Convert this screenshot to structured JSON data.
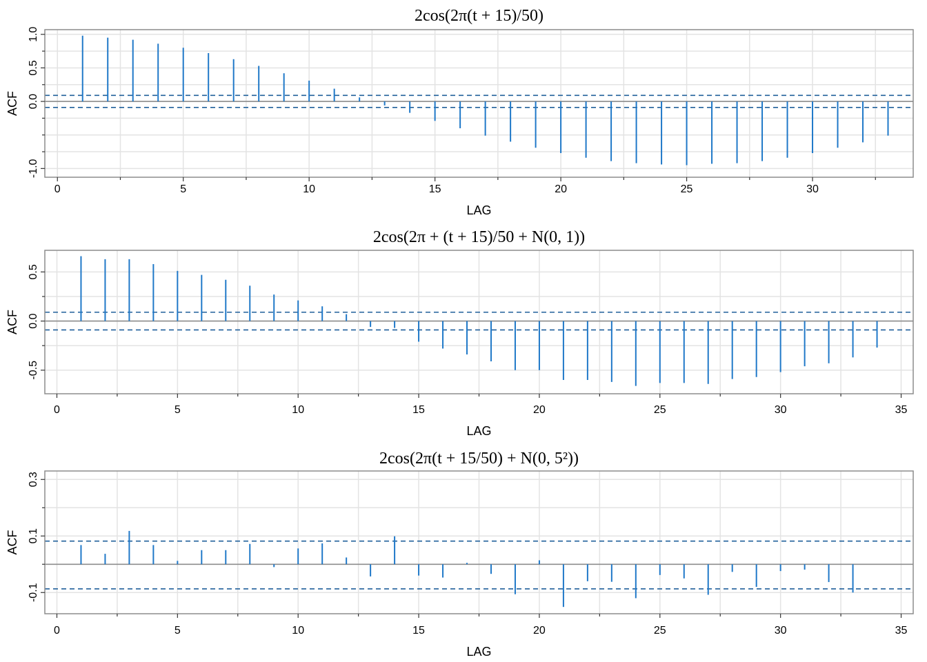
{
  "colors": {
    "spike": "#1f78c8",
    "bound": "#1f5f9a",
    "grid": "#e3e3e3",
    "frame": "#8c8c8c",
    "zero": "#8c8c8c"
  },
  "chart_data": [
    {
      "type": "bar",
      "title": "2cos(2π(t + 15)/50)",
      "xlabel": "LAG",
      "ylabel": "ACF",
      "xlim": [
        -0.5,
        34
      ],
      "ylim": [
        -1.13,
        1.07
      ],
      "xticks": [
        0,
        5,
        10,
        15,
        20,
        25,
        30
      ],
      "xtick_labels": [
        "0",
        "5",
        "10",
        "15",
        "20",
        "25",
        "30"
      ],
      "yticks": [
        1.0,
        0.5,
        0.0,
        -1.0
      ],
      "ytick_labels": [
        "1.0",
        "0.5",
        "0.0",
        "-1.0"
      ],
      "grid": true,
      "confidence_bounds": [
        0.09,
        -0.09
      ],
      "x": [
        1,
        2,
        3,
        4,
        5,
        6,
        7,
        8,
        9,
        10,
        11,
        12,
        13,
        14,
        15,
        16,
        17,
        18,
        19,
        20,
        21,
        22,
        23,
        24,
        25,
        26,
        27,
        28,
        29,
        30,
        31,
        32,
        33
      ],
      "values": [
        0.98,
        0.95,
        0.92,
        0.86,
        0.8,
        0.72,
        0.63,
        0.53,
        0.42,
        0.31,
        0.19,
        0.06,
        -0.06,
        -0.17,
        -0.29,
        -0.4,
        -0.51,
        -0.6,
        -0.69,
        -0.77,
        -0.84,
        -0.89,
        -0.92,
        -0.94,
        -0.95,
        -0.93,
        -0.92,
        -0.89,
        -0.84,
        -0.77,
        -0.69,
        -0.61,
        -0.51
      ]
    },
    {
      "type": "bar",
      "title": "2cos(2π + (t + 15)/50 + N(0, 1))",
      "xlabel": "LAG",
      "ylabel": "ACF",
      "xlim": [
        -0.5,
        35.5
      ],
      "ylim": [
        -0.74,
        0.72
      ],
      "xticks": [
        0,
        5,
        10,
        15,
        20,
        25,
        30,
        35
      ],
      "xtick_labels": [
        "0",
        "5",
        "10",
        "15",
        "20",
        "25",
        "30",
        "35"
      ],
      "yticks": [
        0.5,
        0.0,
        -0.5
      ],
      "ytick_labels": [
        "0.5",
        "0.0",
        "-0.5"
      ],
      "grid": true,
      "confidence_bounds": [
        0.09,
        -0.09
      ],
      "x": [
        1,
        2,
        3,
        4,
        5,
        6,
        7,
        8,
        9,
        10,
        11,
        12,
        13,
        14,
        15,
        16,
        17,
        18,
        19,
        20,
        21,
        22,
        23,
        24,
        25,
        26,
        27,
        28,
        29,
        30,
        31,
        32,
        33,
        34
      ],
      "values": [
        0.66,
        0.63,
        0.63,
        0.58,
        0.51,
        0.47,
        0.42,
        0.36,
        0.27,
        0.21,
        0.15,
        0.07,
        -0.06,
        -0.07,
        -0.21,
        -0.28,
        -0.34,
        -0.41,
        -0.5,
        -0.5,
        -0.6,
        -0.6,
        -0.62,
        -0.66,
        -0.63,
        -0.63,
        -0.64,
        -0.59,
        -0.57,
        -0.52,
        -0.46,
        -0.43,
        -0.37,
        -0.27
      ]
    },
    {
      "type": "bar",
      "title": "2cos(2π(t + 15/50) + N(0, 5²))",
      "xlabel": "LAG",
      "ylabel": "ACF",
      "xlim": [
        -0.5,
        35.5
      ],
      "ylim": [
        -0.175,
        0.33
      ],
      "xticks": [
        0,
        5,
        10,
        15,
        20,
        25,
        30,
        35
      ],
      "xtick_labels": [
        "0",
        "5",
        "10",
        "15",
        "20",
        "25",
        "30",
        "35"
      ],
      "yticks": [
        0.3,
        0.1,
        -0.1
      ],
      "ytick_labels": [
        "0.3",
        "0.1",
        "-0.1"
      ],
      "grid": true,
      "confidence_bounds": [
        0.082,
        -0.087
      ],
      "x": [
        1,
        2,
        3,
        4,
        5,
        6,
        7,
        8,
        9,
        10,
        11,
        12,
        13,
        14,
        15,
        16,
        17,
        18,
        19,
        20,
        21,
        22,
        23,
        24,
        25,
        26,
        27,
        28,
        29,
        30,
        31,
        32,
        33
      ],
      "values": [
        0.068,
        0.037,
        0.118,
        0.068,
        0.012,
        0.05,
        0.05,
        0.072,
        -0.01,
        0.056,
        0.074,
        0.024,
        -0.043,
        0.099,
        -0.04,
        -0.047,
        0.005,
        -0.034,
        -0.106,
        0.014,
        -0.151,
        -0.06,
        -0.062,
        -0.12,
        -0.038,
        -0.05,
        -0.108,
        -0.027,
        -0.08,
        -0.024,
        -0.019,
        -0.063,
        -0.1
      ]
    }
  ]
}
